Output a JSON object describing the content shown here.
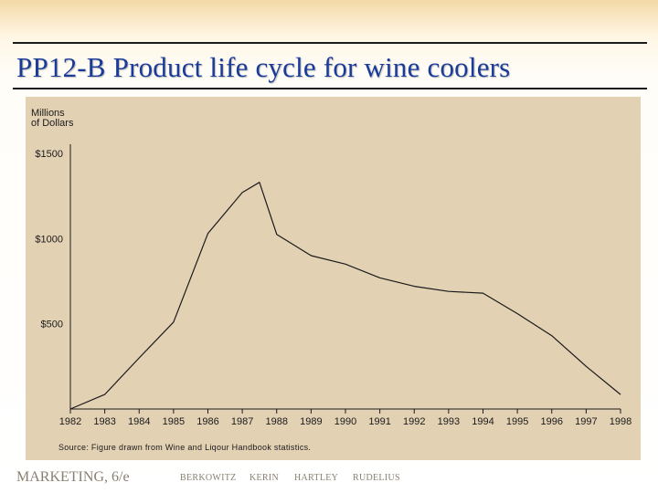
{
  "slide": {
    "title": "PP12-B   Product life cycle for wine coolers"
  },
  "footer": {
    "course": "MARKETING, 6/e",
    "authors": [
      "BERKOWITZ",
      "KERIN",
      "HARTLEY",
      "RUDELIUS"
    ]
  },
  "chart_data": {
    "type": "line",
    "title": "",
    "ylabel": "Millions of Dollars",
    "ylabel_lines": [
      "Millions",
      "of Dollars"
    ],
    "xlabel": "",
    "y_ticks": [
      {
        "value": 1500,
        "label": "$1500"
      },
      {
        "value": 1000,
        "label": "$1000"
      },
      {
        "value": 500,
        "label": "$500"
      }
    ],
    "ylim": [
      0,
      1500
    ],
    "xlim": [
      1982,
      1998
    ],
    "x_tick_labels": [
      "1982",
      "1983",
      "1984",
      "1985",
      "1986",
      "1987",
      "1988",
      "1989",
      "1990",
      "1991",
      "1992",
      "1993",
      "1994",
      "1995",
      "1996",
      "1997",
      "1998"
    ],
    "series": [
      {
        "name": "",
        "color": "#1a1a1a",
        "x": [
          1982,
          1983,
          1984,
          1985,
          1985.5,
          1986,
          1987,
          1987.5,
          1988,
          1989,
          1990,
          1991,
          1992,
          1993,
          1994,
          1995,
          1996,
          1997,
          1998
        ],
        "values": [
          0,
          85,
          300,
          510,
          770,
          1030,
          1270,
          1330,
          1025,
          900,
          850,
          770,
          720,
          690,
          680,
          560,
          430,
          250,
          85
        ]
      }
    ],
    "grid": false,
    "legend": "none",
    "source": "Source: Figure drawn from Wine and Liqour Handbook statistics."
  }
}
